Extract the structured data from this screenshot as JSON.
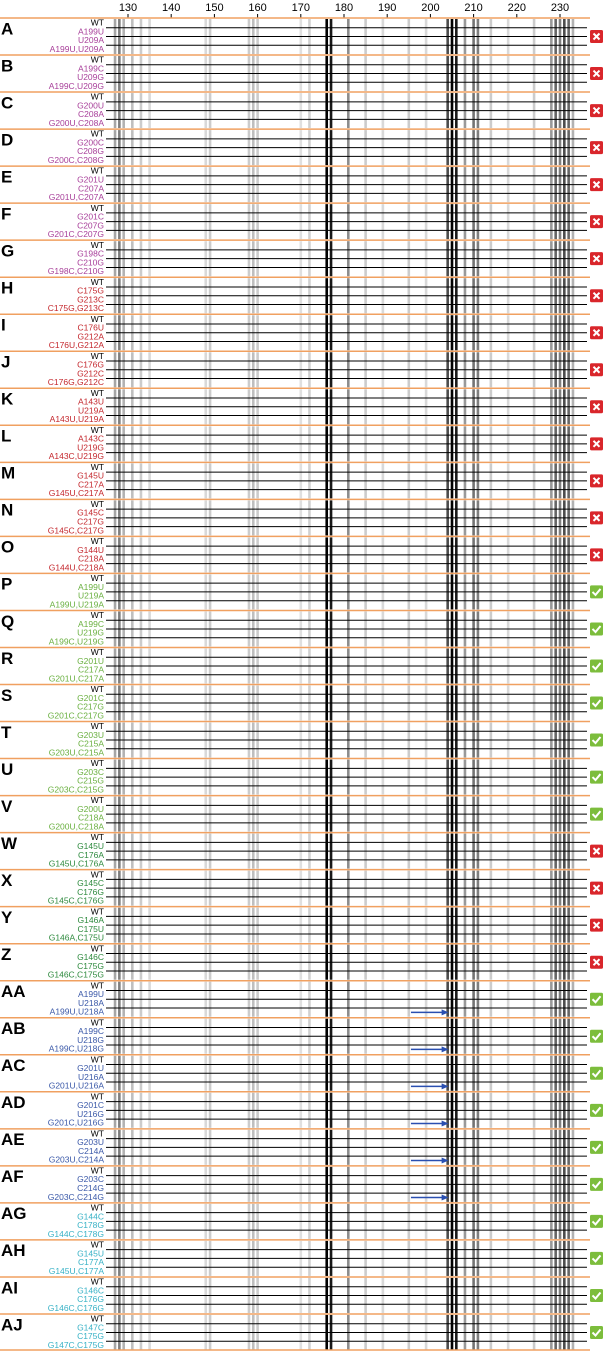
{
  "axis": {
    "ticks": [
      130,
      140,
      150,
      160,
      170,
      180,
      190,
      200,
      210,
      220,
      230
    ]
  },
  "panels": [
    {
      "letter": "A",
      "color": "#a8409a",
      "lanes": [
        "WT",
        "A199U",
        "U209A",
        "A199U,U209A"
      ],
      "status": "cross"
    },
    {
      "letter": "B",
      "color": "#a8409a",
      "lanes": [
        "WT",
        "A199C",
        "U209G",
        "A199C,U209G"
      ],
      "status": "cross"
    },
    {
      "letter": "C",
      "color": "#a8409a",
      "lanes": [
        "WT",
        "G200U",
        "C208A",
        "G200U,C208A"
      ],
      "status": "cross"
    },
    {
      "letter": "D",
      "color": "#a8409a",
      "lanes": [
        "WT",
        "G200C",
        "C208G",
        "G200C,C208G"
      ],
      "status": "cross"
    },
    {
      "letter": "E",
      "color": "#a8409a",
      "lanes": [
        "WT",
        "G201U",
        "C207A",
        "G201U,C207A"
      ],
      "status": "cross"
    },
    {
      "letter": "F",
      "color": "#a8409a",
      "lanes": [
        "WT",
        "G201C",
        "C207G",
        "G201C,C207G"
      ],
      "status": "cross"
    },
    {
      "letter": "G",
      "color": "#a8409a",
      "lanes": [
        "WT",
        "G198C",
        "C210G",
        "G198C,C210G"
      ],
      "status": "cross"
    },
    {
      "letter": "H",
      "color": "#c4282e",
      "lanes": [
        "WT",
        "C175G",
        "G213C",
        "C175G,G213C"
      ],
      "status": "cross"
    },
    {
      "letter": "I",
      "color": "#c4282e",
      "lanes": [
        "WT",
        "C176U",
        "G212A",
        "C176U,G212A"
      ],
      "status": "cross"
    },
    {
      "letter": "J",
      "color": "#c4282e",
      "lanes": [
        "WT",
        "C176G",
        "G212C",
        "C176G,G212C"
      ],
      "status": "cross"
    },
    {
      "letter": "K",
      "color": "#c4282e",
      "lanes": [
        "WT",
        "A143U",
        "U219A",
        "A143U,U219A"
      ],
      "status": "cross"
    },
    {
      "letter": "L",
      "color": "#c4282e",
      "lanes": [
        "WT",
        "A143C",
        "U219G",
        "A143C,U219G"
      ],
      "status": "cross"
    },
    {
      "letter": "M",
      "color": "#c4282e",
      "lanes": [
        "WT",
        "G145U",
        "C217A",
        "G145U,C217A"
      ],
      "status": "cross"
    },
    {
      "letter": "N",
      "color": "#c4282e",
      "lanes": [
        "WT",
        "G145C",
        "C217G",
        "G145C,C217G"
      ],
      "status": "cross"
    },
    {
      "letter": "O",
      "color": "#c4282e",
      "lanes": [
        "WT",
        "G144U",
        "C218A",
        "G144U,C218A"
      ],
      "status": "cross"
    },
    {
      "letter": "P",
      "color": "#6ab040",
      "lanes": [
        "WT",
        "A199U",
        "U219A",
        "A199U,U219A"
      ],
      "status": "check"
    },
    {
      "letter": "Q",
      "color": "#6ab040",
      "lanes": [
        "WT",
        "A199C",
        "U219G",
        "A199C,U219G"
      ],
      "status": "check"
    },
    {
      "letter": "R",
      "color": "#6ab040",
      "lanes": [
        "WT",
        "G201U",
        "C217A",
        "G201U,C217A"
      ],
      "status": "check"
    },
    {
      "letter": "S",
      "color": "#6ab040",
      "lanes": [
        "WT",
        "G201C",
        "C217G",
        "G201C,C217G"
      ],
      "status": "check"
    },
    {
      "letter": "T",
      "color": "#6ab040",
      "lanes": [
        "WT",
        "G203U",
        "C215A",
        "G203U,C215A"
      ],
      "status": "check"
    },
    {
      "letter": "U",
      "color": "#6ab040",
      "lanes": [
        "WT",
        "G203C",
        "C215G",
        "G203C,C215G"
      ],
      "status": "check"
    },
    {
      "letter": "V",
      "color": "#6ab040",
      "lanes": [
        "WT",
        "G200U",
        "C218A",
        "G200U,C218A"
      ],
      "status": "check"
    },
    {
      "letter": "W",
      "color": "#2e8a3e",
      "lanes": [
        "WT",
        "G145U",
        "C176A",
        "G145U,C176A"
      ],
      "status": "cross"
    },
    {
      "letter": "X",
      "color": "#2e8a3e",
      "lanes": [
        "WT",
        "G145C",
        "C176G",
        "G145C,C176G"
      ],
      "status": "cross"
    },
    {
      "letter": "Y",
      "color": "#2e8a3e",
      "lanes": [
        "WT",
        "G146A",
        "C175U",
        "G146A,C175U"
      ],
      "status": "cross"
    },
    {
      "letter": "Z",
      "color": "#2e8a3e",
      "lanes": [
        "WT",
        "G146C",
        "C175G",
        "G146C,C175G"
      ],
      "status": "cross"
    },
    {
      "letter": "AA",
      "color": "#3a58a8",
      "lanes": [
        "WT",
        "A199U",
        "U218A",
        "A199U,U218A"
      ],
      "status": "check",
      "arrow": true
    },
    {
      "letter": "AB",
      "color": "#3a58a8",
      "lanes": [
        "WT",
        "A199C",
        "U218G",
        "A199C,U218G"
      ],
      "status": "check",
      "arrow": true
    },
    {
      "letter": "AC",
      "color": "#3a58a8",
      "lanes": [
        "WT",
        "G201U",
        "U216A",
        "G201U,U216A"
      ],
      "status": "check",
      "arrow": true
    },
    {
      "letter": "AD",
      "color": "#3a58a8",
      "lanes": [
        "WT",
        "G201C",
        "U216G",
        "G201C,U216G"
      ],
      "status": "check",
      "arrow": true
    },
    {
      "letter": "AE",
      "color": "#3a58a8",
      "lanes": [
        "WT",
        "G203U",
        "C214A",
        "G203U,C214A"
      ],
      "status": "check",
      "arrow": true
    },
    {
      "letter": "AF",
      "color": "#3a58a8",
      "lanes": [
        "WT",
        "G203C",
        "C214G",
        "G203C,C214G"
      ],
      "status": "check",
      "arrow": true
    },
    {
      "letter": "AG",
      "color": "#38b2c6",
      "lanes": [
        "WT",
        "G144C",
        "C178G",
        "G144C,C178G"
      ],
      "status": "check"
    },
    {
      "letter": "AH",
      "color": "#38b2c6",
      "lanes": [
        "WT",
        "G145U",
        "C177A",
        "G145U,C177A"
      ],
      "status": "check"
    },
    {
      "letter": "AI",
      "color": "#38b2c6",
      "lanes": [
        "WT",
        "G146C",
        "C176G",
        "G146C,C176G"
      ],
      "status": "check"
    },
    {
      "letter": "AJ",
      "color": "#38b2c6",
      "lanes": [
        "WT",
        "G147C",
        "C175G",
        "G147C,C175G"
      ],
      "status": "check"
    }
  ]
}
